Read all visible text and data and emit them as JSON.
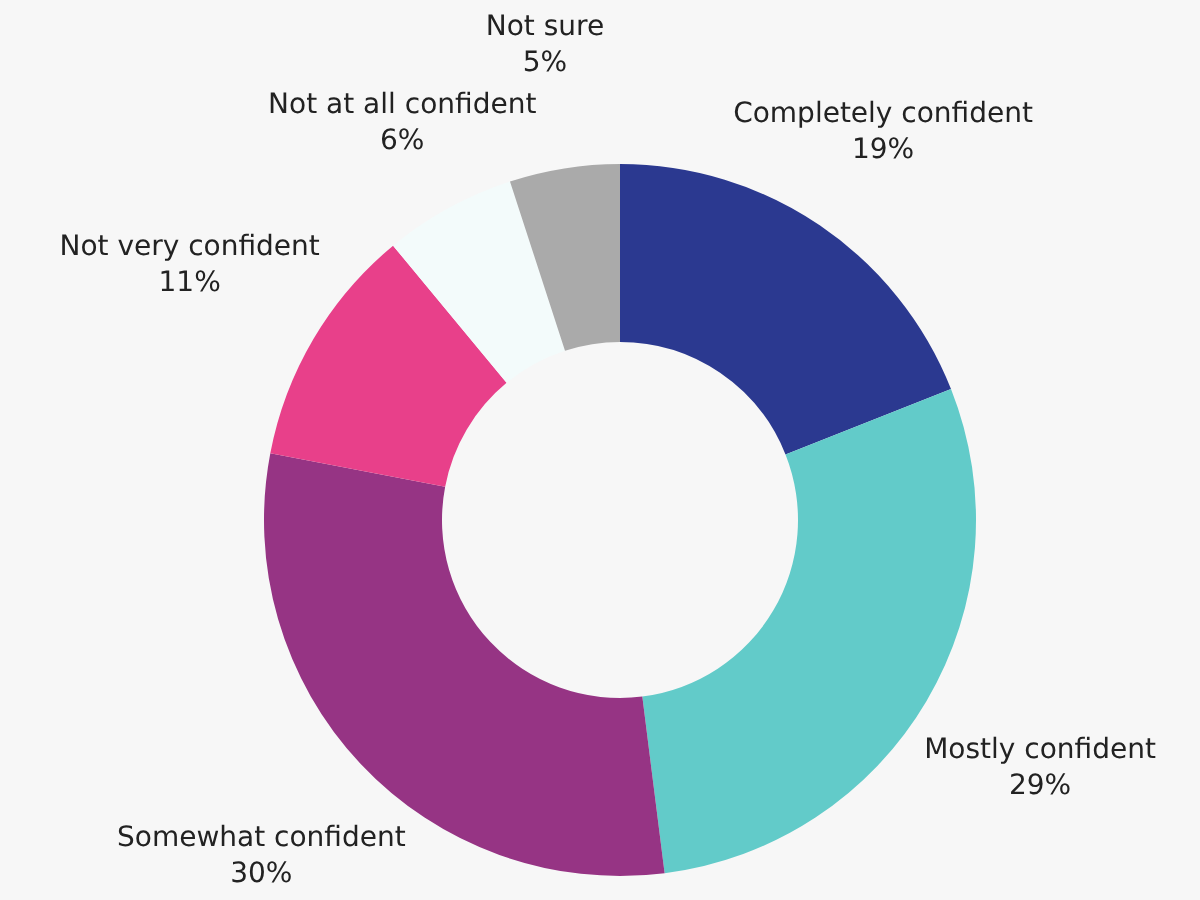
{
  "chart_data": {
    "type": "donut",
    "categories": [
      "Completely confident",
      "Mostly confident",
      "Somewhat confident",
      "Not very confident",
      "Not at all confident",
      "Not sure"
    ],
    "values": [
      19,
      29,
      30,
      11,
      6,
      5
    ],
    "colors": [
      "#2b3990",
      "#62cbc9",
      "#963484",
      "#e8408a",
      "#f3fbfb",
      "#aaaaaa"
    ],
    "value_labels": [
      "19%",
      "29%",
      "30%",
      "11%",
      "6%",
      "5%"
    ],
    "legend": false
  }
}
